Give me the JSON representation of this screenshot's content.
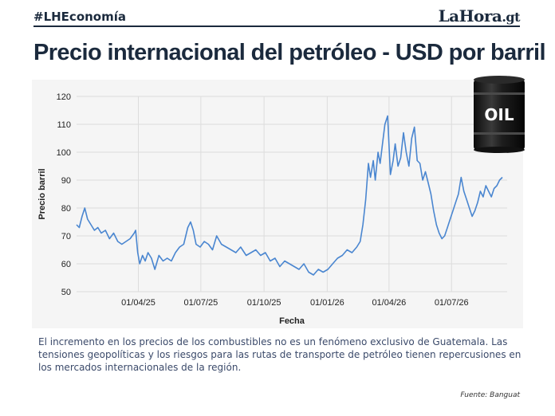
{
  "header": {
    "hashtag": "#LHEconomía",
    "brand": "LaHora",
    "brand_tld": ".gt"
  },
  "barrel_label": "OIL",
  "note": "El incremento en los precios de los combustibles no es un fenómeno exclusivo de Guatemala. Las tensiones geopolíticas y los riesgos para las rutas de transporte de petróleo tienen repercusiones en los mercados internacionales de la región.",
  "source": "Fuente: Banguat",
  "colors": {
    "line": "#4a86d0",
    "text": "#1b2a3d",
    "grid": "#dcdcdc"
  },
  "chart_data": {
    "type": "line",
    "title": "Precio internacional del petróleo - USD por barril",
    "xlabel": "Fecha",
    "ylabel": "Precio barril",
    "ylim": [
      50,
      120
    ],
    "yticks": [
      50,
      60,
      70,
      80,
      90,
      100,
      110,
      120
    ],
    "xlim": [
      "2025-01-01",
      "2026-09-20"
    ],
    "xticks": [
      {
        "date": "2025-04-01",
        "label": "01/04/25"
      },
      {
        "date": "2025-07-01",
        "label": "01/07/25"
      },
      {
        "date": "2025-10-01",
        "label": "01/10/25"
      },
      {
        "date": "2026-01-01",
        "label": "01/01/26"
      },
      {
        "date": "2026-04-01",
        "label": "01/04/26"
      },
      {
        "date": "2026-07-01",
        "label": "01/07/26"
      }
    ],
    "grid": true,
    "series": [
      {
        "x": [
          "2025-01-01",
          "2025-01-05",
          "2025-01-09",
          "2025-01-13",
          "2025-01-17",
          "2025-01-22",
          "2025-01-27",
          "2025-02-01",
          "2025-02-06",
          "2025-02-12",
          "2025-02-18",
          "2025-02-24",
          "2025-03-02",
          "2025-03-08",
          "2025-03-14",
          "2025-03-20",
          "2025-03-26",
          "2025-03-28",
          "2025-03-31",
          "2025-04-03",
          "2025-04-07",
          "2025-04-11",
          "2025-04-15",
          "2025-04-20",
          "2025-04-25",
          "2025-05-01",
          "2025-05-07",
          "2025-05-13",
          "2025-05-19",
          "2025-05-25",
          "2025-05-31",
          "2025-06-06",
          "2025-06-12",
          "2025-06-16",
          "2025-06-20",
          "2025-06-24",
          "2025-06-30",
          "2025-07-06",
          "2025-07-12",
          "2025-07-18",
          "2025-07-24",
          "2025-07-31",
          "2025-08-07",
          "2025-08-14",
          "2025-08-21",
          "2025-08-28",
          "2025-09-05",
          "2025-09-12",
          "2025-09-19",
          "2025-09-26",
          "2025-10-03",
          "2025-10-10",
          "2025-10-17",
          "2025-10-24",
          "2025-10-31",
          "2025-11-07",
          "2025-11-14",
          "2025-11-21",
          "2025-11-28",
          "2025-12-05",
          "2025-12-12",
          "2025-12-19",
          "2025-12-26",
          "2026-01-02",
          "2026-01-09",
          "2026-01-16",
          "2026-01-23",
          "2026-01-30",
          "2026-02-06",
          "2026-02-13",
          "2026-02-18",
          "2026-02-22",
          "2026-02-26",
          "2026-03-02",
          "2026-03-05",
          "2026-03-09",
          "2026-03-12",
          "2026-03-16",
          "2026-03-19",
          "2026-03-23",
          "2026-03-26",
          "2026-03-30",
          "2026-04-03",
          "2026-04-07",
          "2026-04-10",
          "2026-04-14",
          "2026-04-18",
          "2026-04-22",
          "2026-04-26",
          "2026-04-30",
          "2026-05-04",
          "2026-05-08",
          "2026-05-12",
          "2026-05-16",
          "2026-05-20",
          "2026-05-24",
          "2026-05-28",
          "2026-06-01",
          "2026-06-05",
          "2026-06-09",
          "2026-06-13",
          "2026-06-17",
          "2026-06-21",
          "2026-06-25",
          "2026-06-29",
          "2026-07-03",
          "2026-07-07",
          "2026-07-11",
          "2026-07-15",
          "2026-07-19",
          "2026-07-23",
          "2026-07-27",
          "2026-07-31",
          "2026-08-04",
          "2026-08-08",
          "2026-08-12",
          "2026-08-16",
          "2026-08-20",
          "2026-08-24",
          "2026-08-28",
          "2026-09-01",
          "2026-09-05",
          "2026-09-09",
          "2026-09-13"
        ],
        "values": [
          74,
          73,
          77,
          80,
          76,
          74,
          72,
          73,
          71,
          72,
          69,
          71,
          68,
          67,
          68,
          69,
          71,
          72,
          64,
          60,
          63,
          61,
          64,
          62,
          58,
          63,
          61,
          62,
          61,
          64,
          66,
          67,
          73,
          75,
          72,
          67,
          66,
          68,
          67,
          65,
          70,
          67,
          66,
          65,
          64,
          66,
          63,
          64,
          65,
          63,
          64,
          61,
          62,
          59,
          61,
          60,
          59,
          58,
          60,
          57,
          56,
          58,
          57,
          58,
          60,
          62,
          63,
          65,
          64,
          66,
          68,
          74,
          83,
          96,
          91,
          97,
          90,
          100,
          96,
          104,
          110,
          113,
          92,
          97,
          103,
          95,
          98,
          107,
          100,
          95,
          105,
          109,
          97,
          96,
          90,
          93,
          89,
          85,
          79,
          74,
          71,
          69,
          70,
          73,
          76,
          79,
          82,
          85,
          91,
          86,
          83,
          80,
          77,
          79,
          82,
          86,
          84,
          88,
          86,
          84,
          87,
          88,
          90,
          91
        ]
      }
    ]
  }
}
